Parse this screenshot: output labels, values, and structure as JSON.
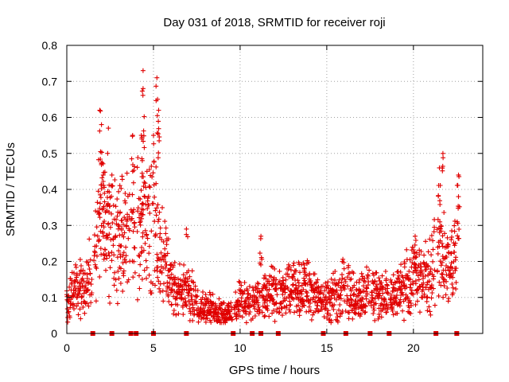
{
  "chart_data": {
    "type": "scatter",
    "title": "Day 031 of 2018, SRMTID for receiver roji",
    "xlabel": "GPS time / hours",
    "ylabel": "SRMTID / TECUs",
    "xlim": [
      0,
      24
    ],
    "ylim": [
      0,
      0.8
    ],
    "x_ticks": [
      "0",
      "5",
      "10",
      "15",
      "20"
    ],
    "y_ticks": [
      "0",
      "0.1",
      "0.2",
      "0.3",
      "0.4",
      "0.5",
      "0.6",
      "0.7",
      "0.8"
    ],
    "grid": true,
    "marker": "plus",
    "color": "#e00000",
    "envelope": [
      {
        "x": 0.0,
        "y": 0.1
      },
      {
        "x": 0.5,
        "y": 0.12
      },
      {
        "x": 1.0,
        "y": 0.13
      },
      {
        "x": 1.5,
        "y": 0.18
      },
      {
        "x": 2.0,
        "y": 0.32
      },
      {
        "x": 2.5,
        "y": 0.26
      },
      {
        "x": 3.0,
        "y": 0.27
      },
      {
        "x": 3.5,
        "y": 0.26
      },
      {
        "x": 4.0,
        "y": 0.3
      },
      {
        "x": 4.5,
        "y": 0.29
      },
      {
        "x": 5.0,
        "y": 0.3
      },
      {
        "x": 5.5,
        "y": 0.22
      },
      {
        "x": 6.0,
        "y": 0.14
      },
      {
        "x": 6.5,
        "y": 0.12
      },
      {
        "x": 7.0,
        "y": 0.11
      },
      {
        "x": 7.5,
        "y": 0.09
      },
      {
        "x": 8.0,
        "y": 0.07
      },
      {
        "x": 8.5,
        "y": 0.07
      },
      {
        "x": 9.0,
        "y": 0.06
      },
      {
        "x": 9.5,
        "y": 0.05
      },
      {
        "x": 10.0,
        "y": 0.09
      },
      {
        "x": 10.5,
        "y": 0.09
      },
      {
        "x": 11.0,
        "y": 0.09
      },
      {
        "x": 11.5,
        "y": 0.11
      },
      {
        "x": 12.0,
        "y": 0.11
      },
      {
        "x": 12.5,
        "y": 0.11
      },
      {
        "x": 13.0,
        "y": 0.12
      },
      {
        "x": 13.5,
        "y": 0.13
      },
      {
        "x": 14.0,
        "y": 0.12
      },
      {
        "x": 14.5,
        "y": 0.1
      },
      {
        "x": 15.0,
        "y": 0.09
      },
      {
        "x": 15.5,
        "y": 0.1
      },
      {
        "x": 16.0,
        "y": 0.13
      },
      {
        "x": 16.5,
        "y": 0.11
      },
      {
        "x": 17.0,
        "y": 0.1
      },
      {
        "x": 17.5,
        "y": 0.12
      },
      {
        "x": 18.0,
        "y": 0.11
      },
      {
        "x": 18.5,
        "y": 0.1
      },
      {
        "x": 19.0,
        "y": 0.11
      },
      {
        "x": 19.5,
        "y": 0.14
      },
      {
        "x": 20.0,
        "y": 0.15
      },
      {
        "x": 20.5,
        "y": 0.15
      },
      {
        "x": 21.0,
        "y": 0.16
      },
      {
        "x": 21.5,
        "y": 0.24
      },
      {
        "x": 22.0,
        "y": 0.18
      },
      {
        "x": 22.5,
        "y": 0.22
      }
    ],
    "spikes": [
      {
        "x": 1.9,
        "y": 0.62
      },
      {
        "x": 2.0,
        "y": 0.58
      },
      {
        "x": 2.1,
        "y": 0.44
      },
      {
        "x": 2.4,
        "y": 0.57
      },
      {
        "x": 2.6,
        "y": 0.44
      },
      {
        "x": 3.8,
        "y": 0.55
      },
      {
        "x": 4.3,
        "y": 0.55
      },
      {
        "x": 4.4,
        "y": 0.73
      },
      {
        "x": 4.4,
        "y": 0.68
      },
      {
        "x": 5.2,
        "y": 0.71
      },
      {
        "x": 5.3,
        "y": 0.62
      },
      {
        "x": 5.0,
        "y": 0.55
      },
      {
        "x": 6.9,
        "y": 0.29
      },
      {
        "x": 11.2,
        "y": 0.27
      },
      {
        "x": 13.7,
        "y": 0.19
      },
      {
        "x": 21.7,
        "y": 0.5
      },
      {
        "x": 21.5,
        "y": 0.46
      },
      {
        "x": 22.6,
        "y": 0.44
      },
      {
        "x": 22.6,
        "y": 0.38
      },
      {
        "x": 20.1,
        "y": 0.27
      }
    ],
    "gap_markers_x": [
      1.5,
      2.6,
      3.7,
      4.0,
      5.0,
      6.9,
      9.6,
      10.7,
      11.2,
      12.2,
      14.8,
      16.1,
      17.5,
      18.6,
      21.3,
      22.5
    ]
  }
}
